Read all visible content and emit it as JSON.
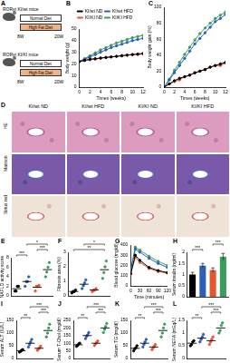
{
  "schematic": {
    "panel": "A",
    "mice": [
      "RORγt KI/wt mice",
      "RORγt KI/KI mice"
    ],
    "diets": [
      "Normal Diet",
      "High Fat Diet"
    ],
    "timepoints": [
      "8W",
      "20W"
    ]
  },
  "histology": {
    "panel": "D",
    "columns": [
      "KI/wt ND",
      "KI/wt HFD",
      "KI/KI ND",
      "KI/KI HFD"
    ],
    "rows": [
      "HE",
      "Masson",
      "Sirius red"
    ]
  },
  "chart_data": [
    {
      "panel": "B",
      "type": "line",
      "x": [
        0,
        1,
        2,
        3,
        4,
        5,
        6,
        7,
        8,
        9,
        10,
        11,
        12
      ],
      "xlim": [
        0,
        12
      ],
      "xticks": [
        0,
        2,
        4,
        6,
        8,
        10,
        12
      ],
      "ylim": [
        0,
        50
      ],
      "yticks": [
        0,
        10,
        20,
        30,
        40,
        50
      ],
      "x_label": "Times (weeks)",
      "y_label": "Body weight (g)",
      "legend": "top",
      "series": [
        {
          "name": "KI/wt ND",
          "color": "#000000",
          "values": [
            22,
            23,
            24,
            24.5,
            25,
            25.5,
            26,
            26.5,
            27,
            27.5,
            28,
            28.5,
            29
          ]
        },
        {
          "name": "KI/wt HFD",
          "color": "#2e5fb4",
          "values": [
            22,
            24,
            26,
            28,
            30,
            32,
            34,
            35.5,
            37,
            38.5,
            40,
            41,
            42
          ]
        },
        {
          "name": "KI/KI ND",
          "color": "#e4572e",
          "values": [
            22,
            23,
            23.5,
            24,
            25,
            25.5,
            26,
            26.5,
            27,
            27.5,
            28,
            28,
            28.5
          ]
        },
        {
          "name": "KI/KI HFD",
          "color": "#3a9d5d",
          "values": [
            22,
            24.5,
            27,
            29.5,
            32,
            34,
            36,
            38,
            39.5,
            41,
            42.5,
            43.5,
            44.5
          ]
        }
      ]
    },
    {
      "panel": "C",
      "type": "line",
      "x": [
        0,
        1,
        2,
        3,
        4,
        5,
        6,
        7,
        8,
        9,
        10,
        11,
        12
      ],
      "xlim": [
        0,
        12
      ],
      "xticks": [
        0,
        2,
        4,
        6,
        8,
        10,
        12
      ],
      "ylim": [
        0,
        100
      ],
      "yticks": [
        0,
        20,
        40,
        60,
        80,
        100
      ],
      "x_label": "Times (weeks)",
      "y_label": "Body weight gain (%)",
      "series": [
        {
          "color": "#000000",
          "values": [
            0,
            4,
            8,
            11,
            13,
            15,
            18,
            20,
            22,
            25,
            27,
            29,
            31
          ]
        },
        {
          "color": "#2e5fb4",
          "values": [
            0,
            9,
            18,
            27,
            36,
            45,
            54,
            61,
            68,
            75,
            82,
            86,
            91
          ]
        },
        {
          "color": "#e4572e",
          "values": [
            0,
            4,
            7,
            9,
            13,
            15,
            18,
            20,
            22,
            25,
            27,
            27,
            30
          ]
        },
        {
          "color": "#3a9d5d",
          "values": [
            0,
            10,
            21,
            31,
            41,
            50,
            59,
            67,
            74,
            80,
            86,
            90,
            94
          ]
        }
      ]
    },
    {
      "panel": "E",
      "type": "dot",
      "categories": [
        null,
        null,
        null,
        null
      ],
      "values": [
        1.5,
        3,
        1.8,
        5.5
      ],
      "points": [
        [
          1,
          1,
          2,
          2
        ],
        [
          2,
          3,
          3,
          4
        ],
        [
          1,
          2,
          2,
          2.2
        ],
        [
          4,
          5,
          6,
          7
        ]
      ],
      "colors": [
        "#000000",
        "#2e5fb4",
        "#e4572e",
        "#3a9d5d"
      ],
      "ylim": [
        0,
        8
      ],
      "yticks": [
        0,
        2,
        4,
        6,
        8
      ],
      "y_label": "NAFLD activity score",
      "tick_labels": "y",
      "significance": [
        {
          "from": 0,
          "to": 1,
          "label": "***"
        },
        {
          "from": 2,
          "to": 3,
          "label": "***"
        },
        {
          "from": 1,
          "to": 3,
          "label": "*"
        }
      ]
    },
    {
      "panel": "F",
      "type": "dot",
      "categories": [
        null,
        null,
        null,
        null
      ],
      "values": [
        0.3,
        0.8,
        0.4,
        1.8
      ],
      "points": [
        [
          0.2,
          0.3,
          0.3,
          0.4
        ],
        [
          0.5,
          0.7,
          0.9,
          1.1
        ],
        [
          0.3,
          0.4,
          0.4,
          0.5
        ],
        [
          1.2,
          1.6,
          2.0,
          2.4
        ]
      ],
      "colors": [
        "#000000",
        "#2e5fb4",
        "#e4572e",
        "#3a9d5d"
      ],
      "ylim": [
        0,
        3
      ],
      "yticks": [
        0,
        1,
        2,
        3
      ],
      "y_label": "Fibrosis area (%)",
      "tick_labels": "y",
      "significance": [
        {
          "from": 0,
          "to": 3,
          "label": "**"
        },
        {
          "from": 1,
          "to": 3,
          "label": "*"
        }
      ]
    },
    {
      "panel": "G",
      "type": "line",
      "x": [
        0,
        15,
        30,
        60,
        90,
        120
      ],
      "xlim": [
        0,
        120
      ],
      "xticks": [
        0,
        30,
        60,
        90,
        120
      ],
      "ylim": [
        0,
        400
      ],
      "yticks": [
        0,
        100,
        200,
        300,
        400
      ],
      "x_label": "Time (minutes)",
      "y_label": "Blood glucose (mg/dl)",
      "series": [
        {
          "color": "#000000",
          "values": [
            120,
            300,
            250,
            180,
            150,
            130
          ]
        },
        {
          "color": "#2e5fb4",
          "values": [
            150,
            360,
            330,
            270,
            220,
            180
          ]
        },
        {
          "color": "#e4572e",
          "values": [
            115,
            280,
            230,
            170,
            140,
            125
          ]
        },
        {
          "color": "#3a9d5d",
          "values": [
            160,
            380,
            350,
            290,
            240,
            200
          ]
        }
      ]
    },
    {
      "panel": "H",
      "type": "bar",
      "categories": [
        null,
        null,
        null,
        null
      ],
      "values": [
        1.0,
        1.4,
        1.2,
        1.8
      ],
      "errors": [
        0.1,
        0.1,
        0.1,
        0.15
      ],
      "colors": [
        "#000000",
        "#2e5fb4",
        "#e4572e",
        "#3a9d5d"
      ],
      "ylim": [
        0,
        2
      ],
      "yticks": [
        0,
        0.5,
        1,
        1.5,
        2
      ],
      "y_label": "Serum insulin (ng/ml)",
      "tick_labels": "y",
      "significance": [
        {
          "from": 0,
          "to": 1,
          "label": "***"
        },
        {
          "from": 2,
          "to": 3,
          "label": "***"
        }
      ]
    },
    {
      "panel": "I",
      "type": "dot",
      "categories": [
        null,
        null,
        null,
        null
      ],
      "values": [
        30,
        60,
        40,
        110
      ],
      "points": [
        [
          25,
          28,
          32,
          35
        ],
        [
          45,
          55,
          65,
          75
        ],
        [
          32,
          38,
          42,
          48
        ],
        [
          85,
          100,
          120,
          135
        ]
      ],
      "colors": [
        "#000000",
        "#2e5fb4",
        "#e4572e",
        "#3a9d5d"
      ],
      "ylim": [
        0,
        150
      ],
      "yticks": [
        0,
        50,
        100,
        150
      ],
      "y_label": "Serum ALT (IU/L)",
      "tick_labels": "y",
      "significance": [
        {
          "from": 0,
          "to": 1,
          "label": "**"
        },
        {
          "from": 2,
          "to": 3,
          "label": "***"
        },
        {
          "from": 1,
          "to": 3,
          "label": "***"
        }
      ]
    },
    {
      "panel": "J",
      "type": "dot",
      "categories": [
        null,
        null,
        null,
        null
      ],
      "values": [
        90,
        150,
        100,
        200
      ],
      "points": [
        [
          80,
          85,
          95,
          100
        ],
        [
          130,
          145,
          155,
          170
        ],
        [
          85,
          95,
          105,
          115
        ],
        [
          170,
          190,
          210,
          230
        ]
      ],
      "colors": [
        "#000000",
        "#2e5fb4",
        "#e4572e",
        "#3a9d5d"
      ],
      "ylim": [
        0,
        250
      ],
      "yticks": [
        0,
        50,
        100,
        150,
        200,
        250
      ],
      "y_label": "Serum T-Chol (mg/dl)",
      "tick_labels": "y",
      "significance": [
        {
          "from": 0,
          "to": 1,
          "label": "**"
        },
        {
          "from": 2,
          "to": 3,
          "label": "***"
        },
        {
          "from": 1,
          "to": 3,
          "label": "***"
        }
      ]
    },
    {
      "panel": "K",
      "type": "dot",
      "categories": [
        null,
        null,
        null,
        null
      ],
      "values": [
        40,
        60,
        45,
        110
      ],
      "points": [
        [
          30,
          38,
          42,
          50
        ],
        [
          45,
          55,
          65,
          75
        ],
        [
          35,
          42,
          48,
          55
        ],
        [
          85,
          100,
          120,
          135
        ]
      ],
      "colors": [
        "#000000",
        "#2e5fb4",
        "#e4572e",
        "#3a9d5d"
      ],
      "ylim": [
        0,
        150
      ],
      "yticks": [
        0,
        50,
        100,
        150
      ],
      "y_label": "Serum TG (mg/dl)",
      "tick_labels": "y",
      "significance": [
        {
          "from": 0,
          "to": 1,
          "label": "**"
        },
        {
          "from": 2,
          "to": 3,
          "label": "***"
        },
        {
          "from": 1,
          "to": 3,
          "label": "***"
        }
      ]
    },
    {
      "panel": "L",
      "type": "dot",
      "categories": [
        null,
        null,
        null,
        null
      ],
      "values": [
        0.6,
        0.8,
        0.7,
        1.2
      ],
      "points": [
        [
          0.5,
          0.55,
          0.65,
          0.7
        ],
        [
          0.65,
          0.75,
          0.85,
          0.95
        ],
        [
          0.55,
          0.65,
          0.75,
          0.85
        ],
        [
          1.0,
          1.1,
          1.3,
          1.4
        ]
      ],
      "colors": [
        "#000000",
        "#2e5fb4",
        "#e4572e",
        "#3a9d5d"
      ],
      "ylim": [
        0,
        1.5
      ],
      "yticks": [
        0,
        0.5,
        1,
        1.5
      ],
      "y_label": "Serum NEFA (mEq/L)",
      "tick_labels": "y",
      "significance": [
        {
          "from": 0,
          "to": 1,
          "label": "**"
        },
        {
          "from": 2,
          "to": 3,
          "label": "***"
        },
        {
          "from": 1,
          "to": 3,
          "label": "***"
        }
      ]
    }
  ]
}
